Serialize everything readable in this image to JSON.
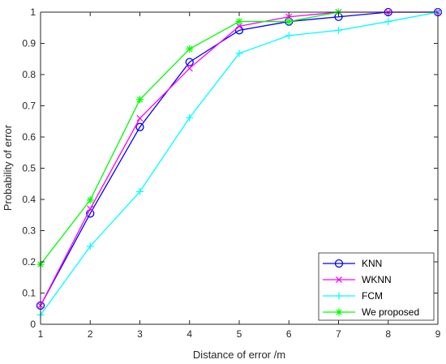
{
  "chart_data": {
    "type": "line",
    "title": "",
    "xlabel": "Distance of error /m",
    "ylabel": "Probability of error",
    "xlim": [
      1,
      9
    ],
    "ylim": [
      0,
      1
    ],
    "x_ticks": [
      "1",
      "2",
      "3",
      "4",
      "5",
      "6",
      "7",
      "8",
      "9"
    ],
    "y_ticks": [
      "0",
      "0.1",
      "0.2",
      "0.3",
      "0.4",
      "0.5",
      "0.6",
      "0.7",
      "0.8",
      "0.9",
      "1"
    ],
    "grid": false,
    "legend_position": "bottom-right",
    "series": [
      {
        "name": "KNN",
        "color": "#0000ff",
        "marker": "circle",
        "x": [
          1,
          2,
          3,
          4,
          5,
          6,
          7,
          8,
          9
        ],
        "y": [
          0.06,
          0.355,
          0.632,
          0.84,
          0.942,
          0.97,
          0.985,
          1.0,
          1.0
        ]
      },
      {
        "name": "WKNN",
        "color": "#ff00ff",
        "marker": "x",
        "x": [
          1,
          2,
          3,
          4,
          5,
          6,
          7,
          8,
          9
        ],
        "y": [
          0.06,
          0.37,
          0.66,
          0.82,
          0.955,
          0.985,
          1.0,
          1.0,
          1.0
        ]
      },
      {
        "name": "FCM",
        "color": "#00ffff",
        "marker": "plus",
        "x": [
          1,
          2,
          3,
          4,
          5,
          6,
          7,
          8,
          9
        ],
        "y": [
          0.03,
          0.25,
          0.425,
          0.662,
          0.868,
          0.925,
          0.942,
          0.97,
          1.0
        ]
      },
      {
        "name": "We proposed",
        "color": "#00ff00",
        "marker": "asterisk",
        "x": [
          1,
          2,
          3,
          4,
          5,
          6,
          7
        ],
        "y": [
          0.192,
          0.398,
          0.72,
          0.882,
          0.97,
          0.97,
          1.0
        ]
      }
    ]
  }
}
